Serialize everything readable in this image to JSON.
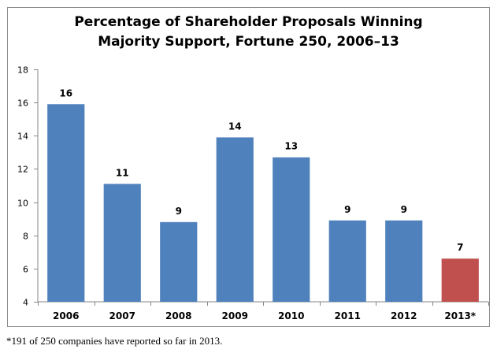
{
  "chart_data": {
    "type": "bar",
    "title_lines": [
      "Percentage of Shareholder Proposals Winning",
      "Majority Support, Fortune 250, 2006–13"
    ],
    "categories": [
      "2006",
      "2007",
      "2008",
      "2009",
      "2010",
      "2011",
      "2012",
      "2013*"
    ],
    "values": [
      15.9,
      11.1,
      8.8,
      13.9,
      12.7,
      8.9,
      8.9,
      6.6
    ],
    "data_labels": [
      "16",
      "11",
      "9",
      "14",
      "13",
      "9",
      "9",
      "7"
    ],
    "colors": [
      "#4f81bd",
      "#4f81bd",
      "#4f81bd",
      "#4f81bd",
      "#4f81bd",
      "#4f81bd",
      "#4f81bd",
      "#c0504d"
    ],
    "xlabel": "",
    "ylabel": "",
    "ylim": [
      4,
      18
    ],
    "yticks": [
      4,
      6,
      8,
      10,
      12,
      14,
      16,
      18
    ],
    "grid": false,
    "legend": "none",
    "footnote": "*191 of 250 companies have reported so far in 2013."
  }
}
